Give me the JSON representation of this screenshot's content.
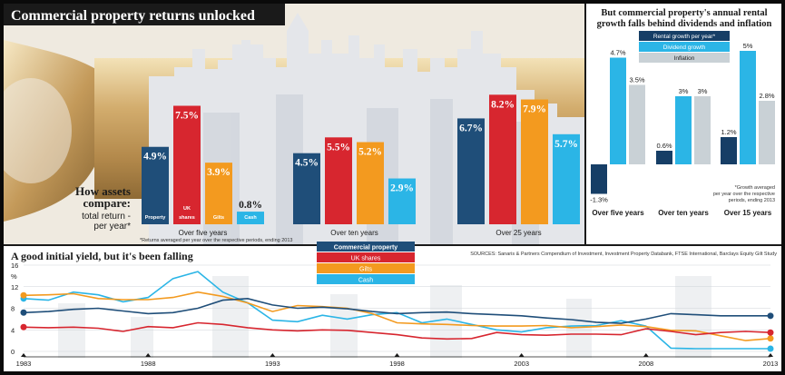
{
  "colors": {
    "commercial": "#1f4e79",
    "uk_shares": "#d7262f",
    "gilts": "#f39a1f",
    "cash": "#2bb5e6",
    "rental": "#163e66",
    "dividend": "#2bb5e6",
    "inflation": "#c9d1d6",
    "banner": "#1a1a1a"
  },
  "main": {
    "title": "Commercial property returns unlocked",
    "compare_title": "How assets compare:",
    "compare_sub": "total return - per year*"
  },
  "chart_data": [
    {
      "type": "bar",
      "title": "",
      "categories": [
        "Over five years",
        "Over ten years",
        "Over 25 years"
      ],
      "unit": "%",
      "series": [
        {
          "name": "Property",
          "label": "Property",
          "values": [
            4.9,
            4.5,
            6.7
          ],
          "display": [
            "4.9%",
            "4.5%",
            "6.7%"
          ]
        },
        {
          "name": "UK shares",
          "label": "UK shares",
          "values": [
            7.5,
            5.5,
            8.2
          ],
          "display": [
            "7.5%",
            "5.5%",
            "8.2%"
          ]
        },
        {
          "name": "Gilts",
          "label": "Gilts",
          "values": [
            3.9,
            5.2,
            7.9
          ],
          "display": [
            "3.9%",
            "5.2%",
            "7.9%"
          ]
        },
        {
          "name": "Cash",
          "label": "Cash",
          "values": [
            0.8,
            2.9,
            5.7
          ],
          "display": [
            "0.8%",
            "2.9%",
            "5.7%"
          ]
        }
      ],
      "footnote": "*Returns averaged per year over the respective periods, ending 2013"
    },
    {
      "type": "bar",
      "title": "But commercial property's annual rental growth falls behind dividends and inflation",
      "categories": [
        "Over five years",
        "Over ten years",
        "Over 15 years"
      ],
      "unit": "%",
      "series": [
        {
          "name": "Rental growth per year*",
          "values": [
            -1.3,
            0.6,
            1.2
          ],
          "display": [
            "-1.3%",
            "0.6%",
            "1.2%"
          ]
        },
        {
          "name": "Dividend growth",
          "values": [
            4.7,
            3,
            5
          ],
          "display": [
            "4.7%",
            "3%",
            "5%"
          ]
        },
        {
          "name": "Inflation",
          "values": [
            3.5,
            3,
            2.8
          ],
          "display": [
            "3.5%",
            "3%",
            "2.8%"
          ]
        }
      ],
      "footnote": "*Growth averaged per year over the respective periods, ending 2013"
    },
    {
      "type": "line",
      "title": "A good initial yield, but it's been falling",
      "ylabel": "%",
      "x": [
        1983,
        1984,
        1985,
        1986,
        1987,
        1988,
        1989,
        1990,
        1991,
        1992,
        1993,
        1994,
        1995,
        1996,
        1997,
        1998,
        1999,
        2000,
        2001,
        2002,
        2003,
        2004,
        2005,
        2006,
        2007,
        2008,
        2009,
        2010,
        2011,
        2012,
        2013
      ],
      "x_ticks": [
        "1983",
        "1988",
        "1993",
        "1998",
        "2003",
        "2008",
        "2013"
      ],
      "y_ticks": [
        "0",
        "4",
        "8",
        "12",
        "16"
      ],
      "ylim": [
        0,
        16
      ],
      "legend": [
        "Commercial property",
        "UK shares",
        "Gilts",
        "Cash"
      ],
      "series": [
        {
          "name": "Commercial property",
          "values": [
            7.2,
            7.4,
            7.8,
            8.0,
            7.5,
            7.0,
            7.2,
            8.0,
            9.5,
            9.8,
            8.6,
            8.0,
            8.2,
            7.9,
            7.4,
            7.0,
            7.2,
            7.3,
            7.0,
            6.8,
            6.6,
            6.2,
            5.9,
            5.4,
            5.2,
            6.0,
            7.0,
            6.8,
            6.6,
            6.6,
            6.6
          ]
        },
        {
          "name": "UK shares",
          "values": [
            4.5,
            4.4,
            4.5,
            4.3,
            3.7,
            4.6,
            4.4,
            5.3,
            5.0,
            4.4,
            4.0,
            3.8,
            4.0,
            3.9,
            3.5,
            3.1,
            2.5,
            2.3,
            2.4,
            3.5,
            3.1,
            3.0,
            3.2,
            3.2,
            3.1,
            4.2,
            3.7,
            3.1,
            3.5,
            3.7,
            3.5
          ]
        },
        {
          "name": "Gilts",
          "values": [
            10.4,
            10.5,
            10.7,
            9.8,
            9.6,
            9.6,
            10.0,
            11.0,
            10.2,
            9.0,
            7.4,
            8.5,
            8.3,
            8.0,
            7.0,
            5.3,
            5.1,
            5.0,
            4.8,
            4.7,
            4.7,
            4.8,
            4.4,
            4.6,
            4.9,
            4.6,
            3.9,
            3.8,
            2.9,
            2.0,
            2.4
          ]
        },
        {
          "name": "Cash",
          "values": [
            9.8,
            9.5,
            11.0,
            10.5,
            9.2,
            10.0,
            13.5,
            14.8,
            11.0,
            9.0,
            5.8,
            5.5,
            6.7,
            6.0,
            6.8,
            7.2,
            5.3,
            6.0,
            5.0,
            4.0,
            3.6,
            4.4,
            4.7,
            4.8,
            5.7,
            4.7,
            0.6,
            0.5,
            0.5,
            0.5,
            0.5
          ]
        }
      ],
      "sources": "SOURCES: Sanaris & Partners Compendium of Investment, Investment Property Databank, FTSE International, Barclays Equity Gilt Study"
    }
  ]
}
